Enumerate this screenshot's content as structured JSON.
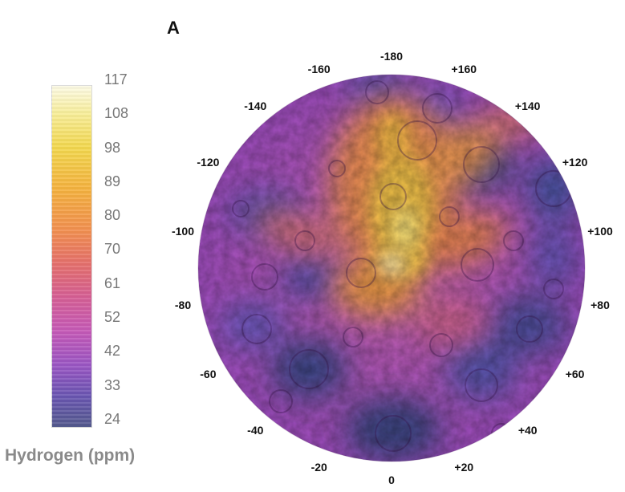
{
  "panel_label": "A",
  "colorbar": {
    "title": "Hydrogen (ppm)",
    "ticks": [
      "117",
      "108",
      "98",
      "89",
      "80",
      "70",
      "61",
      "52",
      "42",
      "33",
      "24"
    ],
    "range": [
      24,
      117
    ],
    "colors": [
      "#fdfbe6",
      "#f3d84e",
      "#f3914f",
      "#d65f95",
      "#9a56c4",
      "#545a8d"
    ]
  },
  "longitude_labels": [
    {
      "text": "-180",
      "deg": 180
    },
    {
      "text": "+160",
      "deg": 160
    },
    {
      "text": "+140",
      "deg": 140
    },
    {
      "text": "+120",
      "deg": 120
    },
    {
      "text": "+100",
      "deg": 100
    },
    {
      "text": "+80",
      "deg": 80
    },
    {
      "text": "+60",
      "deg": 60
    },
    {
      "text": "+40",
      "deg": 40
    },
    {
      "text": "+20",
      "deg": 20
    },
    {
      "text": "0",
      "deg": 0
    },
    {
      "text": "-20",
      "deg": -20
    },
    {
      "text": "-40",
      "deg": -40
    },
    {
      "text": "-60",
      "deg": -60
    },
    {
      "text": "-80",
      "deg": -80
    },
    {
      "text": "-100",
      "deg": -100
    },
    {
      "text": "-120",
      "deg": -120
    },
    {
      "text": "-140",
      "deg": -140
    },
    {
      "text": "-160",
      "deg": -160
    }
  ]
}
